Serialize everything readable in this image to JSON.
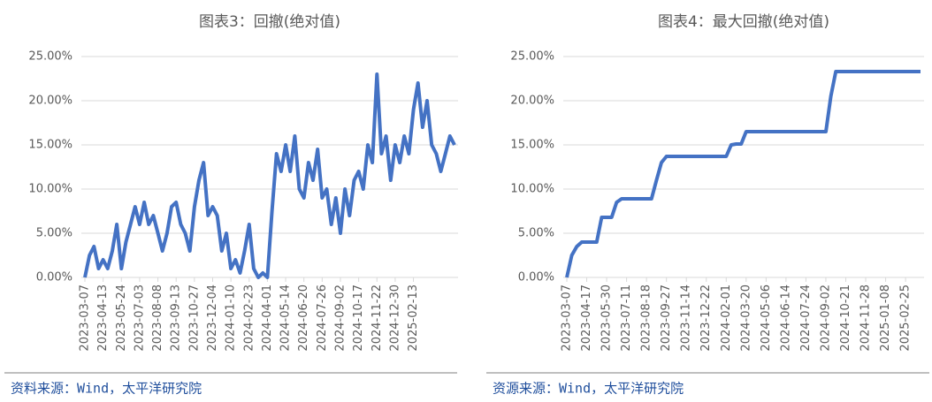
{
  "chart_data": [
    {
      "type": "line",
      "title": "图表3：回撤(绝对值)",
      "source": "资料来源：Wind，太平洋研究院",
      "color": "#4472c4",
      "grid": true,
      "ylim": [
        0,
        25
      ],
      "yticks": [
        {
          "value": 0,
          "label": "0.00%"
        },
        {
          "value": 5,
          "label": "5.00%"
        },
        {
          "value": 10,
          "label": "10.00%"
        },
        {
          "value": 15,
          "label": "15.00%"
        },
        {
          "value": 20,
          "label": "20.00%"
        },
        {
          "value": 25,
          "label": "25.00%"
        }
      ],
      "categories": [
        "2023-03-07",
        null,
        null,
        null,
        "2023-04-13",
        null,
        null,
        null,
        "2023-05-24",
        null,
        null,
        null,
        "2023-07-03",
        null,
        null,
        null,
        "2023-08-08",
        null,
        null,
        null,
        "2023-09-13",
        null,
        null,
        null,
        "2023-10-27",
        null,
        null,
        null,
        "2023-12-04",
        null,
        null,
        null,
        "2024-01-10",
        null,
        null,
        null,
        "2024-02-23",
        null,
        null,
        null,
        "2024-04-01",
        null,
        null,
        null,
        "2024-05-14",
        null,
        null,
        null,
        "2024-06-20",
        null,
        null,
        null,
        "2024-07-26",
        null,
        null,
        null,
        "2024-09-02",
        null,
        null,
        null,
        "2024-10-17",
        null,
        null,
        null,
        "2024-11-22",
        null,
        null,
        null,
        "2024-12-30",
        null,
        null,
        null,
        "2025-02-13",
        null,
        null,
        null,
        null,
        null,
        null,
        null,
        null,
        null
      ],
      "values": [
        0,
        2.5,
        3.5,
        1,
        2,
        1,
        3,
        6,
        1,
        4,
        6,
        8,
        6,
        8.5,
        6,
        7,
        5,
        3,
        5,
        8,
        8.5,
        6,
        5,
        3,
        8,
        11,
        13,
        7,
        8,
        7,
        3,
        5,
        1,
        2,
        0.5,
        3,
        6,
        1,
        0,
        0.5,
        0,
        7.5,
        14,
        12,
        15,
        12,
        16,
        10,
        9,
        13,
        11,
        14.5,
        9,
        10,
        6,
        9,
        5,
        10,
        7,
        11,
        12,
        10,
        15,
        13,
        23,
        14,
        16,
        11,
        15,
        13,
        16,
        14,
        19,
        22,
        17,
        20,
        15,
        14,
        12,
        14,
        16,
        15
      ]
    },
    {
      "type": "line",
      "title": "图表4：最大回撤(绝对值)",
      "source": "资源来源：Wind，太平洋研究院",
      "color": "#4472c4",
      "grid": true,
      "ylim": [
        0,
        25
      ],
      "yticks": [
        {
          "value": 0,
          "label": "0.00%"
        },
        {
          "value": 5,
          "label": "5.00%"
        },
        {
          "value": 10,
          "label": "10.00%"
        },
        {
          "value": 15,
          "label": "15.00%"
        },
        {
          "value": 20,
          "label": "20.00%"
        },
        {
          "value": 25,
          "label": "25.00%"
        }
      ],
      "categories": [
        "2023-03-07",
        null,
        null,
        null,
        "2023-04-17",
        null,
        null,
        null,
        "2023-05-30",
        null,
        null,
        null,
        "2023-07-11",
        null,
        null,
        null,
        "2023-08-18",
        null,
        null,
        null,
        "2023-09-27",
        null,
        null,
        null,
        "2023-11-14",
        null,
        null,
        null,
        "2023-12-22",
        null,
        null,
        null,
        "2024-02-01",
        null,
        null,
        null,
        "2024-03-20",
        null,
        null,
        null,
        "2024-05-06",
        null,
        null,
        null,
        "2024-06-14",
        null,
        null,
        null,
        "2024-07-24",
        null,
        null,
        null,
        "2024-09-02",
        null,
        null,
        null,
        "2024-10-21",
        null,
        null,
        null,
        "2024-11-28",
        null,
        null,
        null,
        "2025-01-08",
        null,
        null,
        null,
        "2025-02-25",
        null,
        null,
        null
      ],
      "values": [
        0,
        2.5,
        3.5,
        4,
        4,
        4,
        4,
        6.8,
        6.8,
        6.8,
        8.5,
        8.9,
        8.9,
        8.9,
        8.9,
        8.9,
        8.9,
        8.9,
        11,
        13,
        13.7,
        13.7,
        13.7,
        13.7,
        13.7,
        13.7,
        13.7,
        13.7,
        13.7,
        13.7,
        13.7,
        13.7,
        13.7,
        15,
        15.1,
        15.1,
        16.5,
        16.5,
        16.5,
        16.5,
        16.5,
        16.5,
        16.5,
        16.5,
        16.5,
        16.5,
        16.5,
        16.5,
        16.5,
        16.5,
        16.5,
        16.5,
        16.5,
        20.5,
        23.3,
        23.3,
        23.3,
        23.3,
        23.3,
        23.3,
        23.3,
        23.3,
        23.3,
        23.3,
        23.3,
        23.3,
        23.3,
        23.3,
        23.3,
        23.3,
        23.3,
        23.3
      ]
    }
  ]
}
